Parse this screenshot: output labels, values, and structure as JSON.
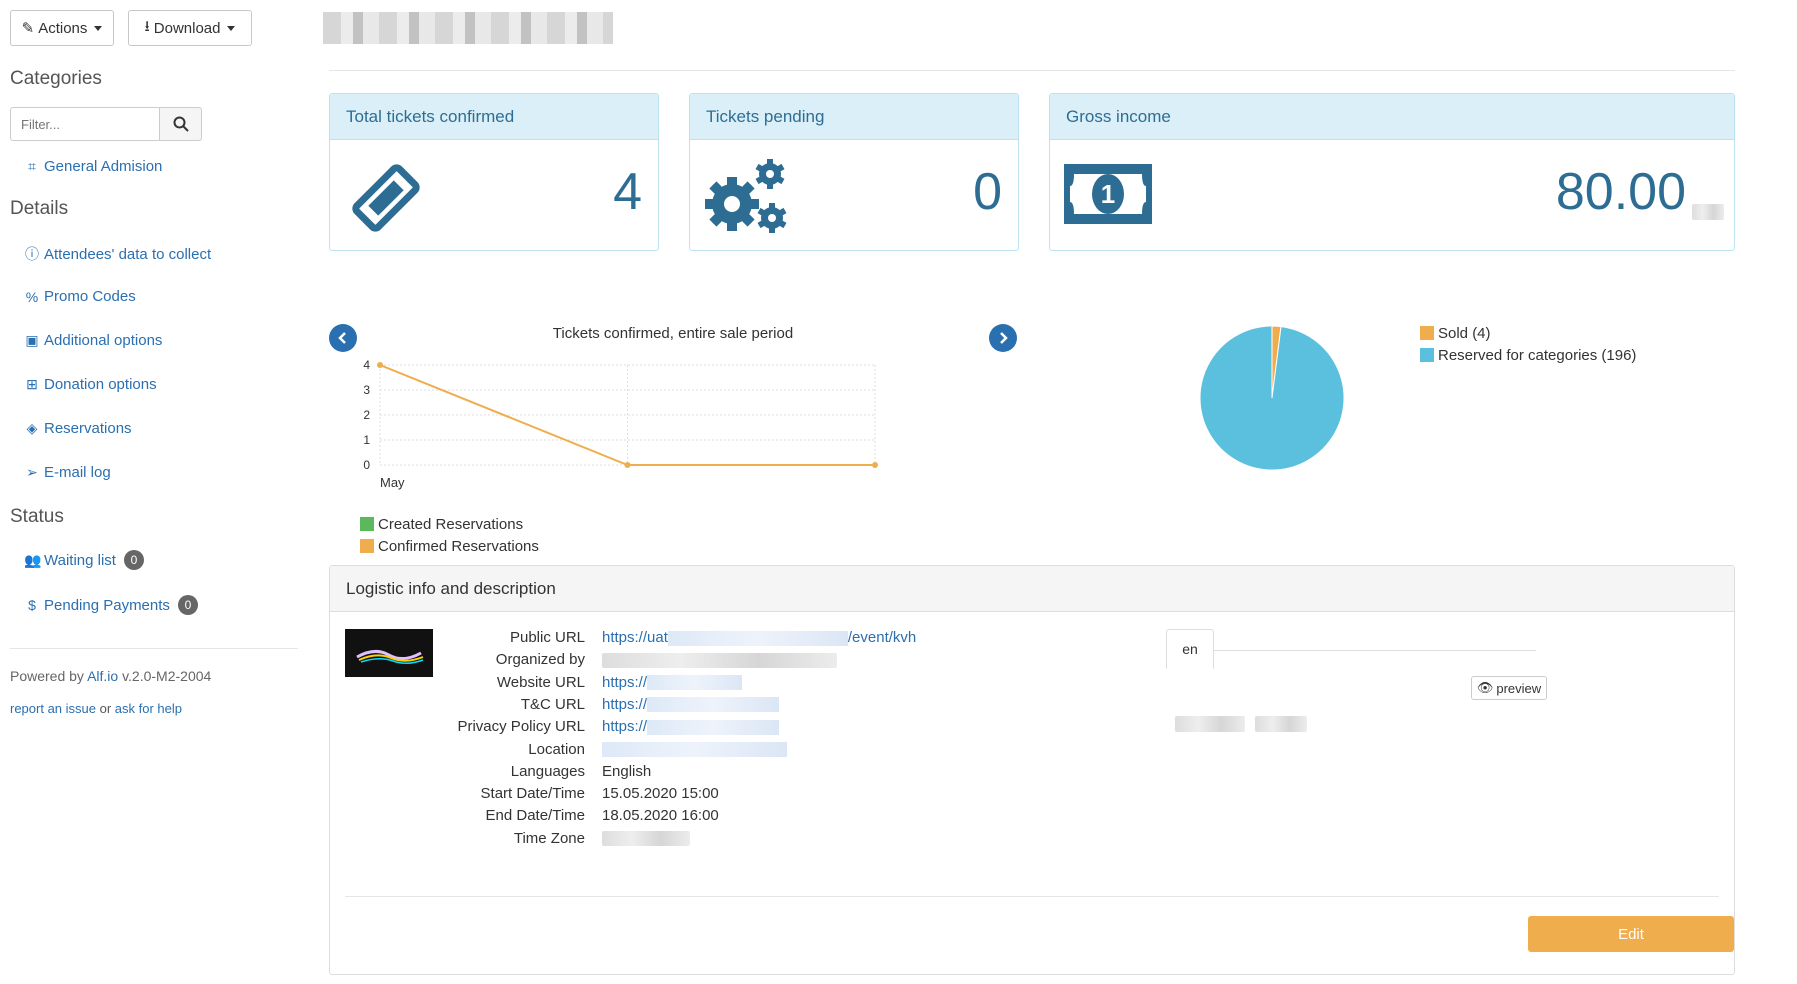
{
  "toolbar": {
    "actions_label": "Actions",
    "download_label": "Download"
  },
  "sidebar": {
    "categories_heading": "Categories",
    "filter_placeholder": "Filter...",
    "categories": [
      {
        "label": "General Admision",
        "icon": "tag-icon"
      }
    ],
    "details_heading": "Details",
    "details": [
      {
        "label": "Attendees' data to collect",
        "icon": "info-icon"
      },
      {
        "label": "Promo Codes",
        "icon": "percent-icon"
      },
      {
        "label": "Additional options",
        "icon": "money-icon"
      },
      {
        "label": "Donation options",
        "icon": "gift-icon"
      },
      {
        "label": "Reservations",
        "icon": "ticket-icon"
      },
      {
        "label": "E-mail log",
        "icon": "paper-plane-icon"
      }
    ],
    "status_heading": "Status",
    "status": [
      {
        "label": "Waiting list",
        "count": "0",
        "icon": "users-icon"
      },
      {
        "label": "Pending Payments",
        "count": "0",
        "icon": "dollar-icon"
      }
    ],
    "footer": {
      "powered_prefix": "Powered by ",
      "powered_link": "Alf.io",
      "version": " v.2.0-M2-2004",
      "report_link": "report an issue",
      "or_text": " or ",
      "help_link": "ask for help"
    }
  },
  "stats": {
    "confirmed": {
      "title": "Total tickets confirmed",
      "value": "4"
    },
    "pending": {
      "title": "Tickets pending",
      "value": "0"
    },
    "income": {
      "title": "Gross income",
      "value": "80.00"
    }
  },
  "colors": {
    "accent": "#2e6d93",
    "sold": "#f0ad4e",
    "reserved": "#5bc0de",
    "created": "#5cb85c",
    "edit": "#f0ad4e"
  },
  "chart_data": [
    {
      "type": "line",
      "title": "Tickets confirmed, entire sale period",
      "x_tick_labels": [
        "May"
      ],
      "ylim": [
        0,
        4
      ],
      "y_ticks": [
        0,
        1,
        2,
        3,
        4
      ],
      "grid": true,
      "series": [
        {
          "name": "Created Reservations",
          "values": []
        },
        {
          "name": "Confirmed Reservations",
          "values": [
            4,
            0,
            0
          ]
        }
      ],
      "legend": "bottom-left"
    },
    {
      "type": "pie",
      "slices": [
        {
          "label": "Sold (4)",
          "value": 4
        },
        {
          "label": "Reserved for categories (196)",
          "value": 196
        }
      ],
      "legend": "right"
    }
  ],
  "logistic": {
    "title": "Logistic info and description",
    "rows": [
      {
        "label": "Public URL",
        "value_prefix": "https://uat",
        "value_suffix": "/event/kvh",
        "link": true
      },
      {
        "label": "Organized by",
        "value_prefix": "",
        "value_suffix": "",
        "link": false
      },
      {
        "label": "Website URL",
        "value_prefix": "https://",
        "value_suffix": "",
        "link": true
      },
      {
        "label": "T&C URL",
        "value_prefix": "https://",
        "value_suffix": "",
        "link": true
      },
      {
        "label": "Privacy Policy URL",
        "value_prefix": "https://",
        "value_suffix": "",
        "link": true
      },
      {
        "label": "Location",
        "value_prefix": "",
        "value_suffix": "",
        "link": false
      },
      {
        "label": "Languages",
        "value_prefix": "English",
        "value_suffix": "",
        "link": false
      },
      {
        "label": "Start Date/Time",
        "value_prefix": "15.05.2020 15:00",
        "value_suffix": "",
        "link": false
      },
      {
        "label": "End Date/Time",
        "value_prefix": "18.05.2020 16:00",
        "value_suffix": "",
        "link": false
      },
      {
        "label": "Time Zone",
        "value_prefix": "",
        "value_suffix": "",
        "link": false
      }
    ],
    "lang_tab": "en",
    "preview_label": "preview",
    "edit_label": "Edit"
  }
}
